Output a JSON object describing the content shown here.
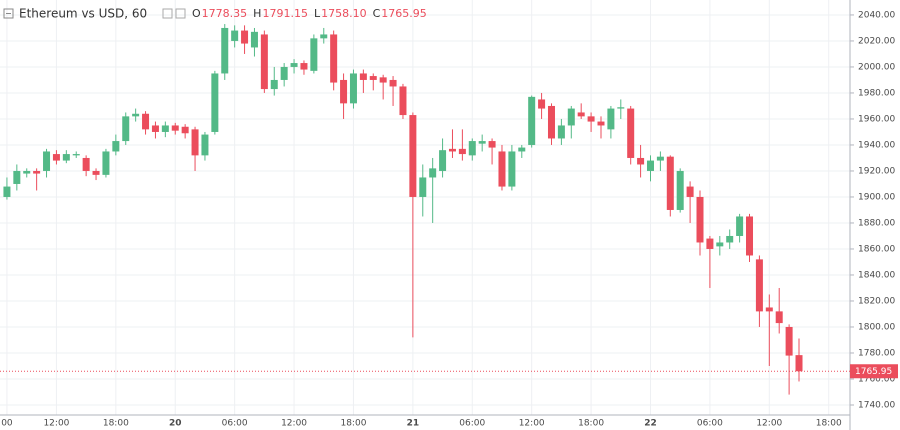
{
  "chart_data": {
    "type": "candlestick",
    "title": "Ethereum vs USD, 60",
    "legend": [
      {
        "key": "O",
        "value_label": "1778.35"
      },
      {
        "key": "H",
        "value_label": "1791.15"
      },
      {
        "key": "L",
        "value_label": "1758.10"
      },
      {
        "key": "C",
        "value_label": "1765.95"
      }
    ],
    "up_color": "#53b987",
    "down_color": "#eb4d5c",
    "open": [
      1900,
      1910,
      1918,
      1920,
      1920,
      1933,
      1928,
      1932,
      1930,
      1920,
      1917,
      1935,
      1943,
      1962,
      1964,
      1955,
      1950,
      1955,
      1954,
      1952,
      1932,
      1950,
      1995,
      2020,
      2028,
      2015,
      2025,
      1983,
      1990,
      2000,
      2003,
      1997,
      2022,
      2025,
      1990,
      1972,
      1995,
      1993,
      1992,
      1990,
      1985,
      1963,
      1900,
      1915,
      1920,
      1937,
      1937,
      1932,
      1941,
      1943,
      1935,
      1908,
      1935,
      1940,
      1975,
      1970,
      1945,
      1955,
      1965,
      1962,
      1958,
      1952,
      1968,
      1968,
      1930,
      1920,
      1928,
      1931,
      1890,
      1908,
      1900,
      1868,
      1862,
      1865,
      1870,
      1885,
      1852,
      1815,
      1812,
      1800,
      1778.35
    ],
    "high": [
      1915,
      1925,
      1922,
      1922,
      1937,
      1936,
      1936,
      1935,
      1932,
      1922,
      1937,
      1948,
      1965,
      1968,
      1966,
      1958,
      1958,
      1957,
      1956,
      1954,
      1950,
      1997,
      2033,
      2032,
      2032,
      2030,
      2028,
      2000,
      2003,
      2006,
      2005,
      2025,
      2030,
      2028,
      1995,
      1998,
      1998,
      1995,
      1994,
      1993,
      1987,
      1965,
      1925,
      1930,
      1945,
      1952,
      1952,
      1945,
      1948,
      1945,
      1940,
      1940,
      1940,
      1978,
      1980,
      1972,
      1960,
      1970,
      1972,
      1965,
      1962,
      1970,
      1975,
      1970,
      1940,
      1932,
      1935,
      1932,
      1922,
      1912,
      1905,
      1870,
      1870,
      1875,
      1887,
      1887,
      1855,
      1825,
      1830,
      1802,
      1791.15
    ],
    "low": [
      1898,
      1905,
      1915,
      1905,
      1915,
      1925,
      1926,
      1930,
      1916,
      1913,
      1915,
      1932,
      1940,
      1958,
      1948,
      1945,
      1946,
      1948,
      1945,
      1920,
      1928,
      1948,
      1990,
      2015,
      2010,
      2008,
      1980,
      1978,
      1985,
      1995,
      1994,
      1995,
      2018,
      1982,
      1960,
      1968,
      1980,
      1982,
      1975,
      1970,
      1960,
      1792,
      1885,
      1880,
      1915,
      1930,
      1928,
      1928,
      1935,
      1925,
      1905,
      1905,
      1930,
      1938,
      1960,
      1940,
      1940,
      1945,
      1960,
      1950,
      1945,
      1945,
      1960,
      1925,
      1915,
      1912,
      1920,
      1885,
      1888,
      1880,
      1855,
      1830,
      1855,
      1860,
      1865,
      1850,
      1800,
      1770,
      1795,
      1748,
      1758.1
    ],
    "close": [
      1908,
      1920,
      1920,
      1918,
      1935,
      1928,
      1933,
      1933,
      1920,
      1917,
      1935,
      1943,
      1962,
      1964,
      1952,
      1950,
      1955,
      1951,
      1949,
      1932,
      1948,
      1995,
      2030,
      2028,
      2018,
      2027,
      1983,
      1990,
      2000,
      2003,
      1998,
      2022,
      2025,
      1988,
      1972,
      1995,
      1990,
      1990,
      1988,
      1985,
      1963,
      1900,
      1915,
      1922,
      1936,
      1935,
      1933,
      1943,
      1943,
      1938,
      1908,
      1935,
      1938,
      1977,
      1968,
      1945,
      1955,
      1968,
      1962,
      1958,
      1955,
      1968,
      1969,
      1930,
      1925,
      1928,
      1931,
      1890,
      1920,
      1900,
      1865,
      1860,
      1865,
      1870,
      1885,
      1855,
      1812,
      1812,
      1803,
      1778,
      1765.95
    ],
    "xlim": [
      -0.7,
      85.15
    ],
    "xticks": [
      {
        "value": 0,
        "label": "00"
      },
      {
        "value": 5,
        "label": "12:00"
      },
      {
        "value": 11,
        "label": "18:00"
      },
      {
        "value": 17,
        "label": "20"
      },
      {
        "value": 23,
        "label": "06:00"
      },
      {
        "value": 29,
        "label": "12:00"
      },
      {
        "value": 35,
        "label": "18:00"
      },
      {
        "value": 41,
        "label": "21"
      },
      {
        "value": 47,
        "label": "06:00"
      },
      {
        "value": 53,
        "label": "12:00"
      },
      {
        "value": 59,
        "label": "18:00"
      },
      {
        "value": 65,
        "label": "22"
      },
      {
        "value": 71,
        "label": "06:00"
      },
      {
        "value": 77,
        "label": "12:00"
      },
      {
        "value": 83,
        "label": "18:00"
      }
    ],
    "ylim": [
      1732.3,
      2051.5
    ],
    "yticks": [
      {
        "value": 1740,
        "label": "1740.00"
      },
      {
        "value": 1760,
        "label": "1760.00"
      },
      {
        "value": 1780,
        "label": "1780.00"
      },
      {
        "value": 1800,
        "label": "1800.00"
      },
      {
        "value": 1820,
        "label": "1820.00"
      },
      {
        "value": 1840,
        "label": "1840.00"
      },
      {
        "value": 1860,
        "label": "1860.00"
      },
      {
        "value": 1880,
        "label": "1880.00"
      },
      {
        "value": 1900,
        "label": "1900.00"
      },
      {
        "value": 1920,
        "label": "1920.00"
      },
      {
        "value": 1940,
        "label": "1940.00"
      },
      {
        "value": 1960,
        "label": "1960.00"
      },
      {
        "value": 1980,
        "label": "1980.00"
      },
      {
        "value": 2000,
        "label": "2000.00"
      },
      {
        "value": 2020,
        "label": "2020.00"
      },
      {
        "value": 2040,
        "label": "2040.00"
      }
    ],
    "grid": true
  }
}
